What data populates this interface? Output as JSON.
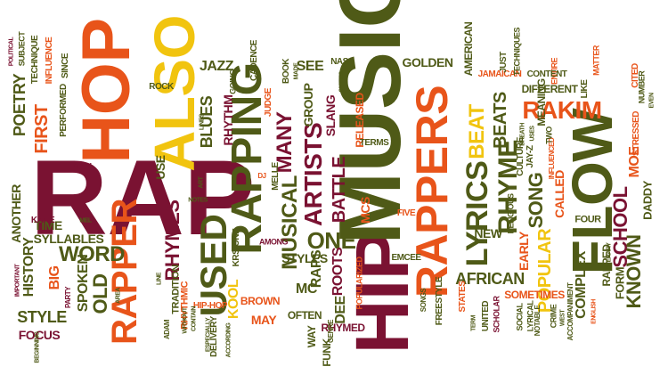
{
  "palette": {
    "maroon": "#7a1232",
    "olive": "#4f5a17",
    "orange": "#e8541a",
    "gold": "#f1c40f",
    "brown": "#a45a12",
    "lightorange": "#f39c12"
  },
  "words": {
    "rap": "RAP",
    "hip": "HIP",
    "music": "MUSIC",
    "hop": "HOP",
    "also": "ALSO",
    "rappers": "RAPPERS",
    "flow": "FLOW",
    "rapper": "RAPPER",
    "rapping": "RAPPING",
    "lyrics": "LYRICS",
    "used": "USED",
    "rakim": "RAKIM",
    "artists": "ARTISTS",
    "musical": "MUSICAL",
    "beat": "BEAT",
    "school": "SCHOOL",
    "rhyme": "RHYME",
    "known": "KNOWN",
    "popular": "POPULAR",
    "song": "SONG",
    "word": "WORD",
    "one": "ONE",
    "rhymes": "RHYMES",
    "many": "MANY",
    "poetry": "POETRY",
    "first": "FIRST",
    "battle": "BATTLE",
    "beats": "BEATS",
    "old": "OLD",
    "history": "HISTORY",
    "style": "STYLE",
    "jazz": "JAZZ",
    "blues": "BLUES",
    "syllables": "SYLLABLES",
    "african": "AFRICAN",
    "another": "ANOTHER",
    "spoken": "SPOKEN",
    "rhythm": "RHYTHM",
    "raps": "RAPS",
    "roots": "ROOTS",
    "mcs": "MCS",
    "mc": "MC",
    "kool": "KOOL",
    "american": "AMERICAN",
    "golden": "GOLDEN",
    "group": "GROUP",
    "see": "SEE",
    "slang": "SLANG",
    "meaning": "MEANING",
    "called": "CALLED",
    "moe": "MOE",
    "daddy": "DADDY",
    "rapped": "RAPPED",
    "form": "FORM",
    "complex": "COMPLEX",
    "early": "EARLY",
    "new": "NEW",
    "styles": "STYLES",
    "dee": "DEE",
    "brown": "BROWN",
    "may": "MAY",
    "often": "OFTEN",
    "way": "WAY",
    "funk": "FUNK",
    "time": "TIME",
    "big": "BIG",
    "kane": "KANE",
    "focus": "FOCUS",
    "man": "MAN",
    "use": "USE",
    "rock": "ROCK",
    "technique": "TECHNIQUE",
    "influence": "INFLUENCE",
    "performed": "PERFORMED",
    "since": "SINCE",
    "subject": "SUBJECT",
    "political": "POLITICAL",
    "tradition": "TRADITION",
    "rhythmic": "RHYTHMIC",
    "krs_one": "KRS-ONE",
    "hip_hop": "HIP-HOP",
    "delivery": "DELIVERY",
    "cadence": "CADENCE",
    "book": "BOOK",
    "made": "MADE",
    "judge": "JUDGE",
    "rhymed": "RHYMED",
    "released": "RELEASED",
    "terms": "TERMS",
    "five": "FIVE",
    "emcee": "EMCEE",
    "popularized": "POPULARIZED",
    "genre": "GENRE",
    "nas": "NAS",
    "among": "AMONG",
    "melle": "MELLE",
    "dj": "DJ",
    "art": "ART",
    "notes": "NOTES",
    "mel": "MEL",
    "songs": "SONGS",
    "freestyle": "FREESTYLE",
    "states": "STATES",
    "united": "UNITED",
    "term": "TERM",
    "sometimes": "SOMETIMES",
    "scholar": "SCHOLAR",
    "lyrical": "LYRICAL",
    "notable": "NOTABLE",
    "social": "SOCIAL",
    "religious": "RELIGIOUS",
    "culture": "CULTURE",
    "jay_z": "JAY-Z",
    "influenced": "INFLUENCED",
    "crime": "CRIME",
    "west": "WEST",
    "accompaniment": "ACCOMPANIMENT",
    "english": "ENGLISH",
    "four": "FOUR",
    "literary": "LITERARY",
    "stressed": "STRESSED",
    "number": "NUMBER",
    "even": "EVEN",
    "cited": "CITED",
    "matter": "MATTER",
    "entire": "ENTIRE",
    "like": "LIKE",
    "different": "DIFFERENT",
    "content": "CONTENT",
    "jamaican": "JAMAICAN",
    "just": "JUST",
    "techniques": "TECHNIQUES",
    "breath": "BREATH",
    "uses": "USES",
    "two": "TWO",
    "lines": "LINES",
    "going": "GOING",
    "smiles": "SMILES",
    "important": "IMPORTANT",
    "party": "PARTY",
    "area": "AREA",
    "line": "LINE",
    "adam": "ADAM",
    "without": "WITHOUT",
    "contain": "CONTAIN",
    "especially": "ESPECIALLY",
    "according": "ACCORDING",
    "beginning": "BEGINNING"
  }
}
